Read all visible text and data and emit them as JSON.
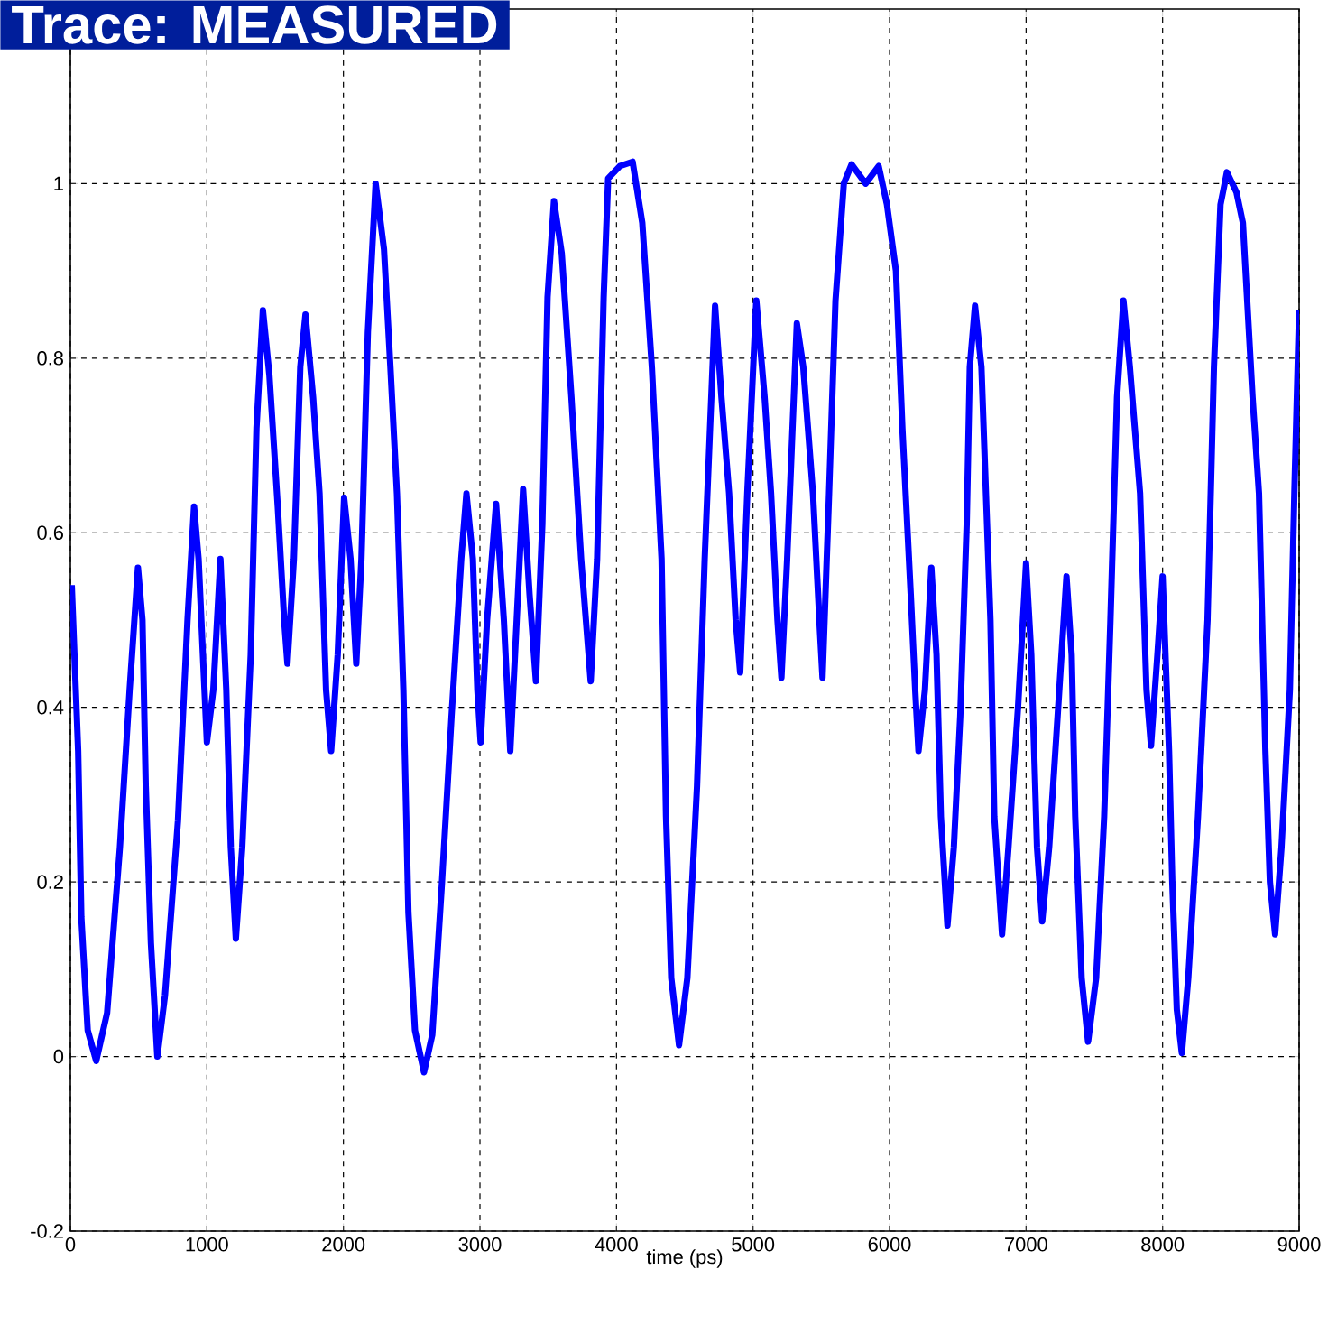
{
  "chart_data": {
    "type": "line",
    "title": "Trace: MEASURED",
    "xlabel": "time (ps)",
    "color": "#0000ff",
    "line_style": "solid",
    "grid": true,
    "xlim": [
      0,
      9000
    ],
    "ylim": [
      -0.2,
      1.2
    ],
    "xticks": [
      0,
      1000,
      2000,
      3000,
      4000,
      5000,
      6000,
      7000,
      8000,
      9000
    ],
    "yticks": [
      -0.2,
      0,
      0.2,
      0.4,
      0.6,
      0.8,
      1
    ],
    "x": [
      10,
      57,
      80,
      127,
      189,
      269,
      363,
      434,
      495,
      528,
      552,
      590,
      637,
      693,
      788,
      858,
      906,
      939,
      1000,
      1047,
      1099,
      1142,
      1175,
      1212,
      1259,
      1321,
      1363,
      1410,
      1458,
      1519,
      1566,
      1590,
      1637,
      1684,
      1722,
      1778,
      1825,
      1873,
      1910,
      1958,
      2005,
      2052,
      2094,
      2132,
      2179,
      2236,
      2297,
      2344,
      2392,
      2439,
      2476,
      2524,
      2590,
      2651,
      2722,
      2792,
      2863,
      2901,
      2948,
      2981,
      3005,
      3052,
      3118,
      3175,
      3222,
      3269,
      3316,
      3363,
      3410,
      3457,
      3495,
      3542,
      3599,
      3670,
      3741,
      3811,
      3858,
      3906,
      3939,
      4024,
      4118,
      4189,
      4259,
      4330,
      4363,
      4401,
      4458,
      4519,
      4590,
      4646,
      4722,
      4769,
      4825,
      4873,
      4906,
      4958,
      5024,
      5085,
      5132,
      5179,
      5208,
      5250,
      5321,
      5368,
      5439,
      5486,
      5509,
      5557,
      5604,
      5665,
      5722,
      5825,
      5920,
      5981,
      6047,
      6094,
      6155,
      6188,
      6212,
      6259,
      6306,
      6344,
      6376,
      6424,
      6471,
      6518,
      6565,
      6588,
      6626,
      6673,
      6706,
      6739,
      6767,
      6824,
      6871,
      6941,
      7000,
      7038,
      7080,
      7118,
      7169,
      7231,
      7296,
      7334,
      7360,
      7407,
      7454,
      7513,
      7572,
      7618,
      7666,
      7713,
      7760,
      7835,
      7882,
      7915,
      7962,
      8000,
      8047,
      8071,
      8104,
      8141,
      8188,
      8259,
      8329,
      8376,
      8424,
      8471,
      8541,
      8588,
      8659,
      8706,
      8753,
      8786,
      8824,
      8871,
      8932,
      8965,
      9000
    ],
    "values": [
      0.54,
      0.35,
      0.16,
      0.03,
      -0.005,
      0.05,
      0.24,
      0.42,
      0.56,
      0.5,
      0.31,
      0.13,
      0.0,
      0.07,
      0.27,
      0.5,
      0.63,
      0.57,
      0.36,
      0.42,
      0.57,
      0.42,
      0.24,
      0.135,
      0.24,
      0.46,
      0.72,
      0.855,
      0.78,
      0.63,
      0.5,
      0.45,
      0.57,
      0.79,
      0.85,
      0.755,
      0.645,
      0.42,
      0.35,
      0.46,
      0.64,
      0.57,
      0.45,
      0.57,
      0.83,
      1.0,
      0.925,
      0.79,
      0.645,
      0.42,
      0.165,
      0.03,
      -0.018,
      0.025,
      0.2,
      0.39,
      0.57,
      0.645,
      0.57,
      0.42,
      0.36,
      0.5,
      0.633,
      0.5,
      0.35,
      0.5,
      0.65,
      0.53,
      0.43,
      0.61,
      0.87,
      0.98,
      0.92,
      0.755,
      0.57,
      0.43,
      0.57,
      0.87,
      1.006,
      1.02,
      1.025,
      0.955,
      0.79,
      0.57,
      0.275,
      0.09,
      0.013,
      0.09,
      0.31,
      0.57,
      0.86,
      0.755,
      0.645,
      0.5,
      0.44,
      0.645,
      0.866,
      0.755,
      0.645,
      0.5,
      0.434,
      0.57,
      0.84,
      0.79,
      0.645,
      0.5,
      0.434,
      0.645,
      0.866,
      1.0,
      1.022,
      1.0,
      1.02,
      0.976,
      0.9,
      0.72,
      0.53,
      0.42,
      0.35,
      0.42,
      0.56,
      0.46,
      0.275,
      0.15,
      0.24,
      0.39,
      0.61,
      0.79,
      0.86,
      0.79,
      0.645,
      0.5,
      0.275,
      0.14,
      0.24,
      0.4,
      0.565,
      0.46,
      0.24,
      0.155,
      0.24,
      0.39,
      0.55,
      0.46,
      0.275,
      0.09,
      0.017,
      0.09,
      0.275,
      0.5,
      0.755,
      0.866,
      0.79,
      0.645,
      0.42,
      0.356,
      0.46,
      0.55,
      0.35,
      0.2,
      0.054,
      0.004,
      0.09,
      0.275,
      0.5,
      0.79,
      0.976,
      1.013,
      0.99,
      0.955,
      0.755,
      0.645,
      0.35,
      0.2,
      0.14,
      0.24,
      0.42,
      0.645,
      0.855
    ]
  }
}
